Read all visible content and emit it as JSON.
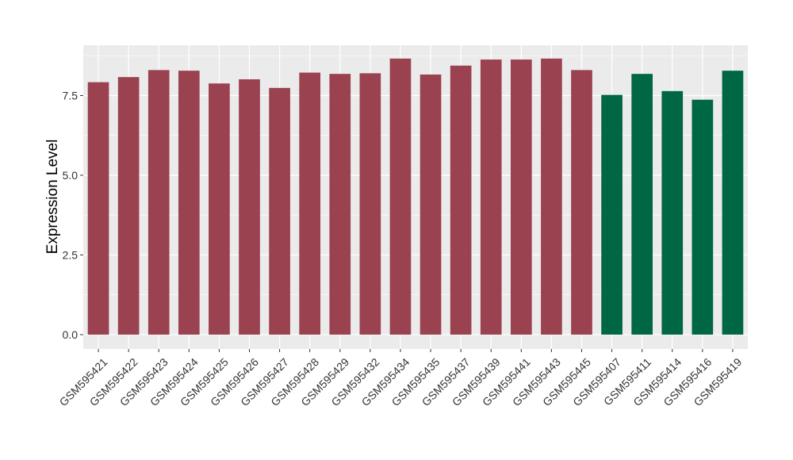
{
  "chart_data": {
    "type": "bar",
    "title": "",
    "xlabel": "",
    "ylabel": "Expression Level",
    "ylim": [
      -0.45,
      9.08
    ],
    "yticks": [
      "0.0",
      "2.5",
      "5.0",
      "7.5"
    ],
    "grid": true,
    "categories": [
      "GSM595421",
      "GSM595422",
      "GSM595423",
      "GSM595424",
      "GSM595425",
      "GSM595426",
      "GSM595427",
      "GSM595428",
      "GSM595429",
      "GSM595432",
      "GSM595434",
      "GSM595435",
      "GSM595437",
      "GSM595439",
      "GSM595441",
      "GSM595443",
      "GSM595445",
      "GSM595407",
      "GSM595411",
      "GSM595414",
      "GSM595416",
      "GSM595419"
    ],
    "values": [
      7.92,
      8.08,
      8.3,
      8.28,
      7.88,
      8.01,
      7.74,
      8.22,
      8.18,
      8.2,
      8.66,
      8.16,
      8.44,
      8.63,
      8.63,
      8.66,
      8.3,
      7.52,
      8.18,
      7.64,
      7.37,
      8.28
    ],
    "groups": [
      0,
      0,
      0,
      0,
      0,
      0,
      0,
      0,
      0,
      0,
      0,
      0,
      0,
      0,
      0,
      0,
      0,
      1,
      1,
      1,
      1,
      1
    ],
    "colors": [
      "#9a4250",
      "#006744"
    ],
    "panel_background": "#ebebeb",
    "grid_color": "#ffffff"
  }
}
